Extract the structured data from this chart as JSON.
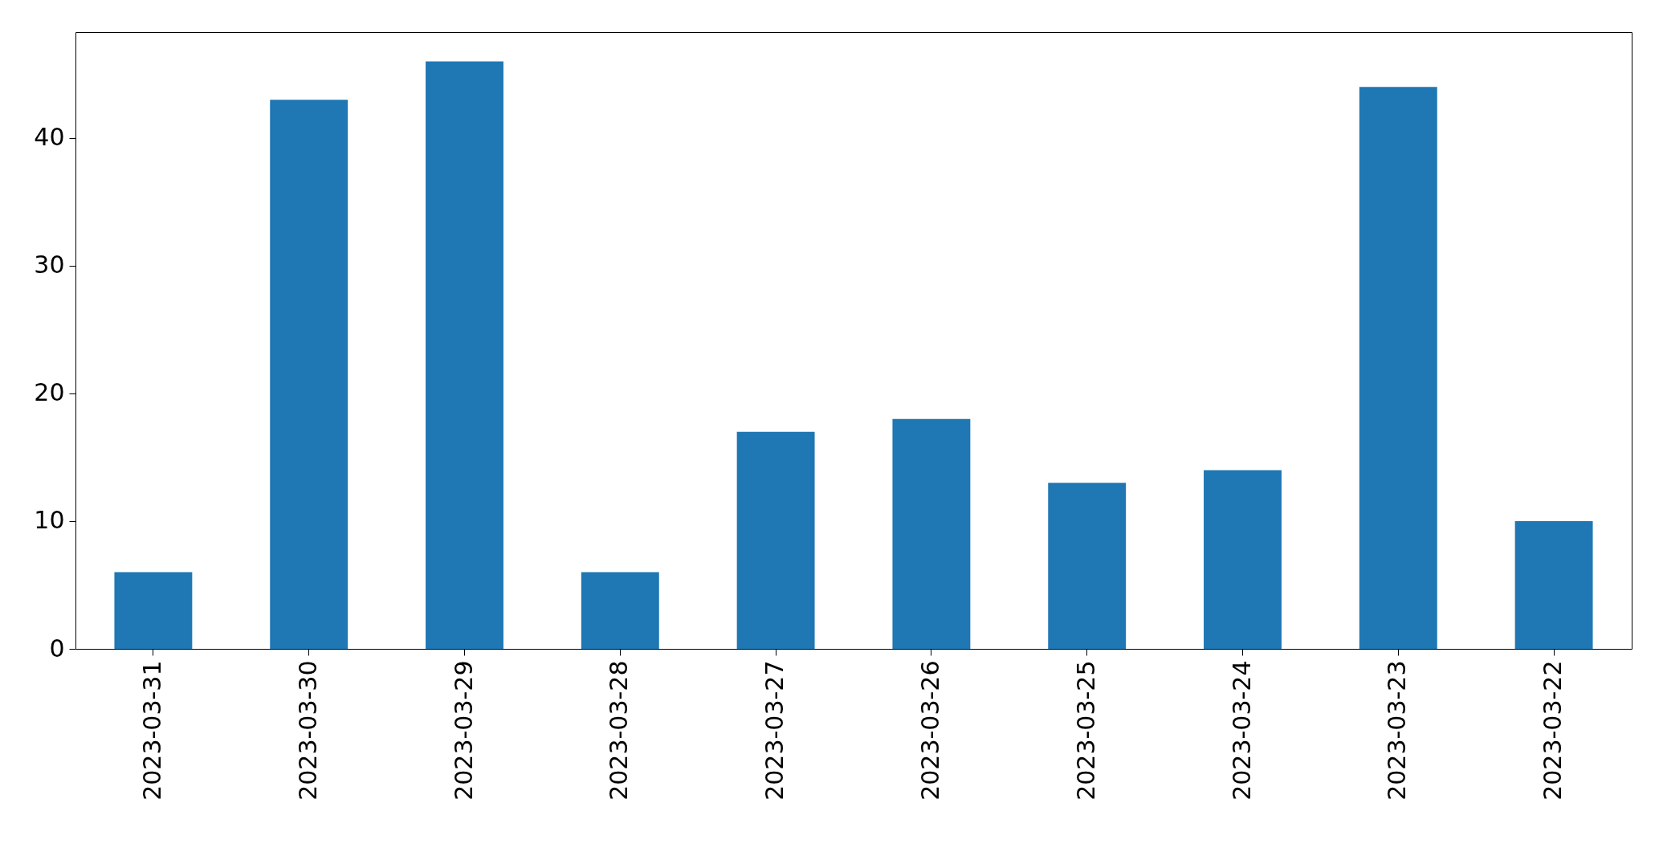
{
  "chart_data": {
    "type": "bar",
    "categories": [
      "2023-03-31",
      "2023-03-30",
      "2023-03-29",
      "2023-03-28",
      "2023-03-27",
      "2023-03-26",
      "2023-03-25",
      "2023-03-24",
      "2023-03-23",
      "2023-03-22"
    ],
    "values": [
      6,
      43,
      46,
      6,
      17,
      18,
      13,
      14,
      44,
      10
    ],
    "color": "#1f77b4",
    "ylim": [
      0,
      48.3
    ],
    "yticks": [
      0,
      10,
      20,
      30,
      40
    ]
  }
}
